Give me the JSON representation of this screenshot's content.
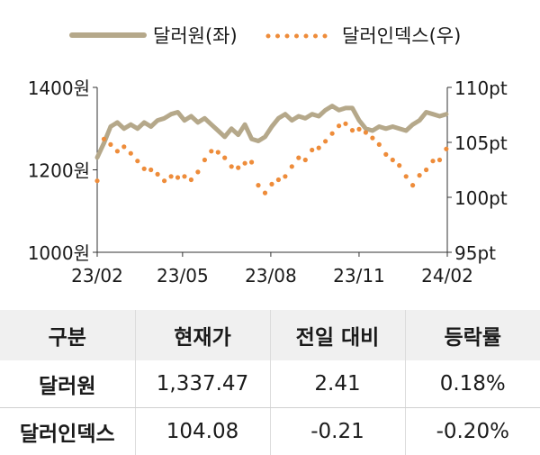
{
  "chart_data": {
    "type": "line",
    "x_ticks": [
      "23/02",
      "23/05",
      "23/08",
      "23/11",
      "24/02"
    ],
    "left_axis": {
      "ticks": [
        "1400원",
        "1200원",
        "1000원"
      ],
      "range": [
        1000,
        1400
      ]
    },
    "right_axis": {
      "ticks": [
        "110pt",
        "105pt",
        "100pt",
        "95pt"
      ],
      "range": [
        95,
        110
      ]
    },
    "grid": false,
    "legend_position": "top",
    "series": [
      {
        "name": "달러원(좌)",
        "axis": "left",
        "style": "solid",
        "color": "#b5a88a",
        "dates": [
          "2023-02-01",
          "2023-02-08",
          "2023-02-15",
          "2023-02-22",
          "2023-03-01",
          "2023-03-08",
          "2023-03-15",
          "2023-03-22",
          "2023-03-29",
          "2023-04-05",
          "2023-04-12",
          "2023-04-19",
          "2023-04-26",
          "2023-05-03",
          "2023-05-10",
          "2023-05-17",
          "2023-05-24",
          "2023-05-31",
          "2023-06-07",
          "2023-06-14",
          "2023-06-21",
          "2023-06-28",
          "2023-07-05",
          "2023-07-12",
          "2023-07-19",
          "2023-07-26",
          "2023-08-02",
          "2023-08-09",
          "2023-08-16",
          "2023-08-23",
          "2023-08-30",
          "2023-09-06",
          "2023-09-13",
          "2023-09-20",
          "2023-09-27",
          "2023-10-04",
          "2023-10-11",
          "2023-10-18",
          "2023-10-25",
          "2023-11-01",
          "2023-11-08",
          "2023-11-15",
          "2023-11-22",
          "2023-11-29",
          "2023-12-06",
          "2023-12-13",
          "2023-12-20",
          "2023-12-27",
          "2024-01-03",
          "2024-01-10",
          "2024-01-17",
          "2024-01-24",
          "2024-01-31"
        ],
        "values": [
          1230,
          1265,
          1305,
          1315,
          1300,
          1310,
          1300,
          1315,
          1305,
          1320,
          1325,
          1335,
          1340,
          1320,
          1330,
          1315,
          1325,
          1310,
          1295,
          1280,
          1300,
          1285,
          1310,
          1275,
          1270,
          1280,
          1305,
          1325,
          1335,
          1320,
          1330,
          1325,
          1335,
          1330,
          1345,
          1355,
          1345,
          1350,
          1350,
          1320,
          1300,
          1295,
          1305,
          1300,
          1305,
          1300,
          1295,
          1310,
          1320,
          1340,
          1335,
          1330,
          1335
        ]
      },
      {
        "name": "달러인덱스(우)",
        "axis": "right",
        "style": "dotted",
        "color": "#ee8c3a",
        "dates": [
          "2023-02-01",
          "2023-02-08",
          "2023-02-15",
          "2023-02-22",
          "2023-03-01",
          "2023-03-08",
          "2023-03-15",
          "2023-03-22",
          "2023-03-29",
          "2023-04-05",
          "2023-04-12",
          "2023-04-19",
          "2023-04-26",
          "2023-05-03",
          "2023-05-10",
          "2023-05-17",
          "2023-05-24",
          "2023-05-31",
          "2023-06-07",
          "2023-06-14",
          "2023-06-21",
          "2023-06-28",
          "2023-07-05",
          "2023-07-12",
          "2023-07-19",
          "2023-07-26",
          "2023-08-02",
          "2023-08-09",
          "2023-08-16",
          "2023-08-23",
          "2023-08-30",
          "2023-09-06",
          "2023-09-13",
          "2023-09-20",
          "2023-09-27",
          "2023-10-04",
          "2023-10-11",
          "2023-10-18",
          "2023-10-25",
          "2023-11-01",
          "2023-11-08",
          "2023-11-15",
          "2023-11-22",
          "2023-11-29",
          "2023-12-06",
          "2023-12-13",
          "2023-12-20",
          "2023-12-27",
          "2024-01-03",
          "2024-01-10",
          "2024-01-17",
          "2024-01-24",
          "2024-01-31"
        ],
        "values": [
          101.5,
          105.3,
          104.8,
          104.2,
          104.6,
          104.0,
          103.3,
          102.6,
          102.5,
          102.1,
          101.5,
          101.9,
          101.8,
          101.9,
          101.6,
          102.3,
          103.4,
          104.2,
          104.1,
          103.6,
          102.8,
          102.7,
          103.1,
          103.2,
          101.1,
          100.4,
          101.2,
          101.6,
          101.9,
          102.8,
          103.6,
          103.4,
          104.3,
          104.5,
          105.1,
          105.8,
          106.5,
          106.7,
          106.1,
          106.2,
          105.9,
          105.4,
          104.8,
          103.9,
          103.4,
          102.9,
          101.9,
          101.1,
          102.0,
          102.5,
          103.3,
          103.4,
          104.4
        ]
      }
    ]
  },
  "legend": {
    "usdkrw": "달러원(좌)",
    "dxy": "달러인덱스(우)"
  },
  "table": {
    "headers": [
      "구분",
      "현재가",
      "전일 대비",
      "등락률"
    ],
    "rows": [
      {
        "label": "달러원",
        "price": "1,337.47",
        "change": "2.41",
        "rate": "0.18%"
      },
      {
        "label": "달러인덱스",
        "price": "104.08",
        "change": "-0.21",
        "rate": "-0.20%"
      }
    ]
  }
}
